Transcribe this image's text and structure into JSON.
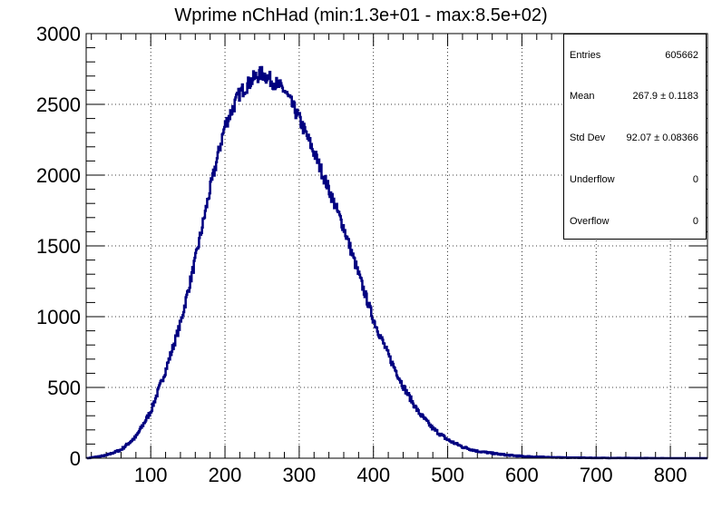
{
  "title": "Wprime nChHad (min:1.3e+01 - max:8.5e+02)",
  "stats": [
    {
      "label": "Entries",
      "value": "605662"
    },
    {
      "label": "Mean",
      "value": "267.9 ± 0.1183"
    },
    {
      "label": "Std Dev",
      "value": "92.07 ± 0.08366"
    },
    {
      "label": "Underflow",
      "value": "0"
    },
    {
      "label": "Overflow",
      "value": "0"
    }
  ],
  "colors": {
    "line": "#000080",
    "axis": "#000000",
    "grid": "#000000"
  },
  "chart_data": {
    "type": "line",
    "title": "Wprime nChHad (min:1.3e+01 - max:8.5e+02)",
    "xlabel": "",
    "ylabel": "",
    "xlim": [
      13,
      850
    ],
    "ylim": [
      0,
      3000
    ],
    "x_ticks": [
      100,
      200,
      300,
      400,
      500,
      600,
      700,
      800
    ],
    "y_ticks": [
      0,
      500,
      1000,
      1500,
      2000,
      2500,
      3000
    ],
    "grid": true,
    "legend": "none",
    "series": [
      {
        "x": [
          15,
          40,
          60,
          80,
          100,
          120,
          140,
          160,
          180,
          200,
          220,
          240,
          250,
          260,
          280,
          300,
          320,
          340,
          360,
          380,
          400,
          420,
          440,
          460,
          480,
          500,
          520,
          540,
          560,
          580,
          600,
          620,
          640,
          660,
          700,
          750,
          800,
          850
        ],
        "y": [
          0,
          20,
          60,
          150,
          330,
          620,
          950,
          1400,
          1900,
          2350,
          2580,
          2690,
          2720,
          2680,
          2600,
          2400,
          2160,
          1900,
          1630,
          1300,
          980,
          730,
          510,
          330,
          210,
          130,
          80,
          50,
          35,
          22,
          14,
          10,
          6,
          4,
          2,
          1,
          0,
          0
        ]
      }
    ]
  }
}
